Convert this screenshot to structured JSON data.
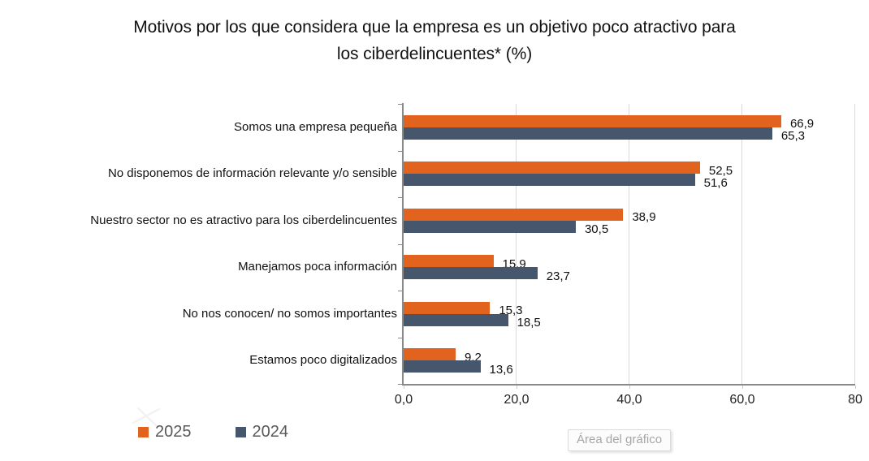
{
  "title": {
    "lines": [
      "Motivos por los que considera que la empresa es un objetivo poco atractivo para",
      "los ciberdelincuentes* (%)"
    ]
  },
  "chart_data": {
    "type": "bar",
    "orientation": "horizontal",
    "title": "Motivos por los que considera que la empresa es un objetivo poco atractivo para los ciberdelincuentes* (%)",
    "categories": [
      "Somos una empresa pequeña",
      "No disponemos de información relevante y/o sensible",
      "Nuestro sector no es atractivo para los ciberdelincuentes",
      "Manejamos poca información",
      "No nos conocen/ no somos importantes",
      "Estamos poco digitalizados"
    ],
    "series": [
      {
        "name": "2025",
        "color": "#E2631E",
        "values": [
          66.9,
          52.5,
          38.9,
          15.9,
          15.3,
          9.2
        ]
      },
      {
        "name": "2024",
        "color": "#46566C",
        "values": [
          65.3,
          51.6,
          30.5,
          23.7,
          18.5,
          13.6
        ]
      }
    ],
    "value_labels": {
      "2025": [
        "66,9",
        "52,5",
        "38,9",
        "15,9",
        "15,3",
        "9,2"
      ],
      "2024": [
        "65,3",
        "51,6",
        "30,5",
        "23,7",
        "18,5",
        "13,6"
      ]
    },
    "x_ticks": [
      {
        "label": "0,0",
        "value": 0
      },
      {
        "label": "20,0",
        "value": 20
      },
      {
        "label": "40,0",
        "value": 40
      },
      {
        "label": "60,0",
        "value": 60
      },
      {
        "label": "80",
        "value": 80
      }
    ],
    "xlim": [
      0,
      80
    ],
    "xlabel": "",
    "ylabel": "",
    "decimal_separator": ",",
    "gridlines": true,
    "legend_position": "bottom-left",
    "value_labels_shown": true
  },
  "tooltip": {
    "text": "Área del gráfico"
  },
  "colors": {
    "series_2025": "#E2631E",
    "series_2024": "#46566C",
    "axis_line": "#898989",
    "gridline": "#D9D9D9",
    "legend_text": "#595959",
    "tooltip_text": "#A6A6A6"
  }
}
